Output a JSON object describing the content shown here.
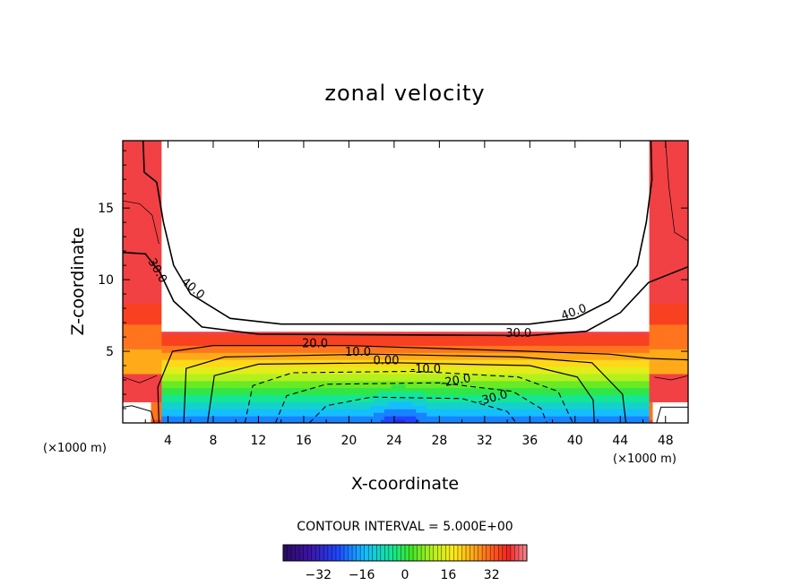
{
  "chart_data": {
    "type": "contour",
    "title": "zonal velocity",
    "xlabel": "X-coordinate",
    "ylabel": "Z-coordinate",
    "x_unit": "(×1000 m)",
    "y_unit": "(×1000 m)",
    "xlim": [
      0,
      50
    ],
    "ylim": [
      0,
      19.7
    ],
    "x_ticks": [
      4,
      8,
      12,
      16,
      20,
      24,
      28,
      32,
      36,
      40,
      44,
      48
    ],
    "y_ticks": [
      5,
      10,
      15
    ],
    "contour_interval_text": "CONTOUR INTERVAL = 5.000E+00",
    "contour_labels": [
      {
        "text": "30.0",
        "x": 2.8,
        "z": 10.5,
        "rotate": 60
      },
      {
        "text": "40.0",
        "x": 6.0,
        "z": 9.2,
        "rotate": 40
      },
      {
        "text": "40.0",
        "x": 40.0,
        "z": 7.5,
        "rotate": -20
      },
      {
        "text": "30.0",
        "x": 35.0,
        "z": 6.0,
        "rotate": 0
      },
      {
        "text": "20.0",
        "x": 17.0,
        "z": 5.3,
        "rotate": 0
      },
      {
        "text": "10.0",
        "x": 20.8,
        "z": 4.7,
        "rotate": 0
      },
      {
        "text": "0.00",
        "x": 23.3,
        "z": 4.1,
        "rotate": 0
      },
      {
        "text": "-10.0",
        "x": 26.8,
        "z": 3.5,
        "rotate": 0
      },
      {
        "text": "-20.0",
        "x": 29.5,
        "z": 2.7,
        "rotate": -10
      },
      {
        "text": "-30.0",
        "x": 32.8,
        "z": 1.5,
        "rotate": -15
      }
    ],
    "colorbar": {
      "min": -45,
      "max": 45,
      "ticks": [
        -32,
        -16,
        0,
        16,
        32
      ],
      "tick_labels": [
        "−32",
        "−16",
        "0",
        "16",
        "32"
      ],
      "colors": [
        "#2a0a5e",
        "#1a1ab8",
        "#1e5cff",
        "#17c4ff",
        "#18e8a8",
        "#32e632",
        "#b8f01e",
        "#fff01a",
        "#ffb019",
        "#ff6a19",
        "#f51e1e",
        "#f0646e",
        "#f8b4b8"
      ]
    }
  }
}
